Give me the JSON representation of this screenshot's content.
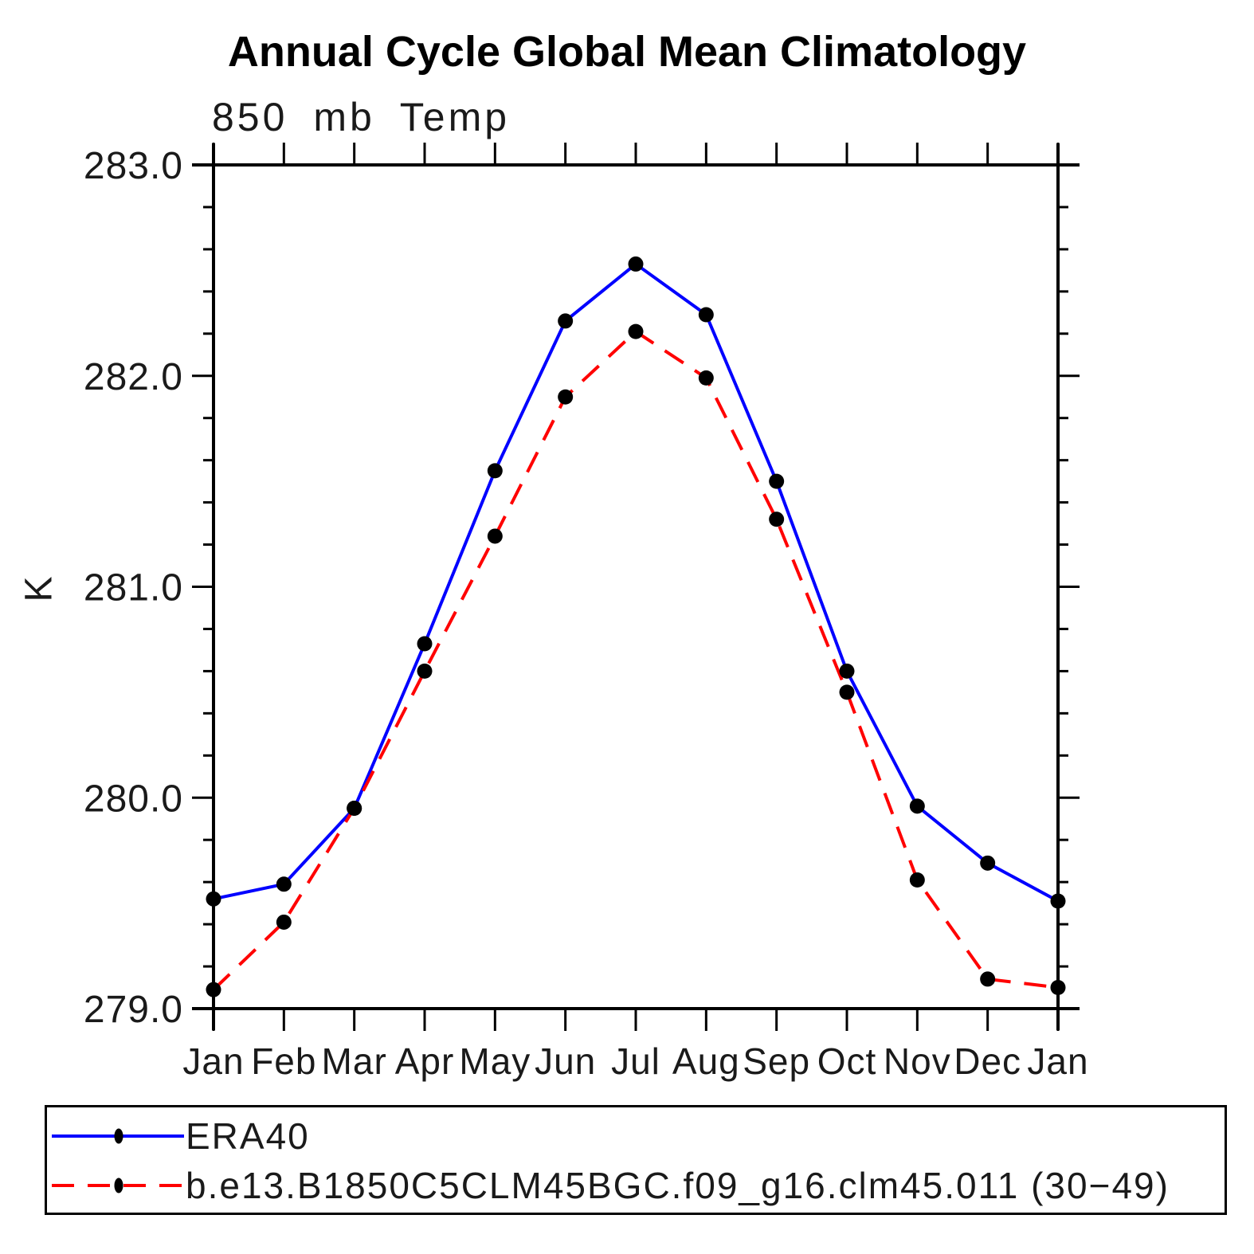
{
  "title": "Annual Cycle Global Mean Climatology",
  "chart_data": {
    "type": "line",
    "title": "Annual Cycle Global Mean Climatology",
    "subtitle": "850 mb Temp",
    "ylabel": "K",
    "xlabel": "",
    "categories": [
      "Jan",
      "Feb",
      "Mar",
      "Apr",
      "May",
      "Jun",
      "Jul",
      "Aug",
      "Sep",
      "Oct",
      "Nov",
      "Dec",
      "Jan"
    ],
    "ylim": [
      279.0,
      283.0
    ],
    "yticks_major": [
      279.0,
      280.0,
      281.0,
      282.0,
      283.0
    ],
    "ytick_labels": [
      "279.0",
      "280.0",
      "281.0",
      "282.0",
      "283.0"
    ],
    "y_minor_step": 0.2,
    "grid": false,
    "legend_position": "bottom",
    "axis_color": "#000000",
    "marker_color": "#000000",
    "series": [
      {
        "name": "ERA40",
        "color": "#0000ff",
        "style": "solid",
        "marker": "filled-circle",
        "values": [
          279.52,
          279.59,
          279.95,
          280.73,
          281.55,
          282.26,
          282.53,
          282.29,
          281.5,
          280.6,
          279.96,
          279.69,
          279.51
        ]
      },
      {
        "name": "b.e13.B1850C5CLM45BGC.f09_g16.clm45.011 (30−49)",
        "color": "#ff0000",
        "style": "dashed",
        "marker": "filled-circle",
        "values": [
          279.09,
          279.41,
          279.95,
          280.6,
          281.24,
          281.9,
          282.21,
          281.99,
          281.32,
          280.5,
          279.61,
          279.14,
          279.1
        ]
      }
    ]
  }
}
